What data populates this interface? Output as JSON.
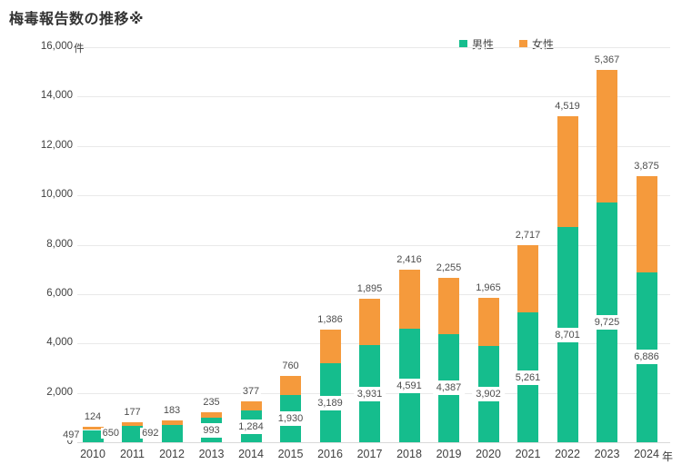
{
  "page": {
    "title": "梅毒報告数の推移※"
  },
  "chart_data": {
    "type": "bar",
    "stacked": true,
    "title": "梅毒報告数の推移※",
    "unit_label": "件",
    "x_suffix": "年",
    "categories": [
      "2010",
      "2011",
      "2012",
      "2013",
      "2014",
      "2015",
      "2016",
      "2017",
      "2018",
      "2019",
      "2020",
      "2021",
      "2022",
      "2023",
      "2024"
    ],
    "series": [
      {
        "name": "男性",
        "color": "#15BD8D",
        "values": [
          497,
          650,
          692,
          993,
          1284,
          1930,
          3189,
          3931,
          4591,
          4387,
          3902,
          5261,
          8701,
          9725,
          6886
        ]
      },
      {
        "name": "女性",
        "color": "#F59A3C",
        "values": [
          124,
          177,
          183,
          235,
          377,
          760,
          1386,
          1895,
          2416,
          2255,
          1965,
          2717,
          4519,
          5367,
          3875
        ]
      }
    ],
    "totals": [
      621,
      827,
      875,
      1228,
      1661,
      2690,
      4575,
      5826,
      7007,
      6642,
      5867,
      7978,
      13220,
      15092,
      10761
    ],
    "ylim": [
      0,
      16000
    ],
    "ytick_step": 2000,
    "yticks": [
      "0",
      "2,000",
      "4,000",
      "6,000",
      "8,000",
      "10,000",
      "12,000",
      "14,000",
      "16,000"
    ],
    "grid": true,
    "legend_position": "top",
    "label_color": "#4d4d4d",
    "gridline_color": "#e9e9e9"
  }
}
